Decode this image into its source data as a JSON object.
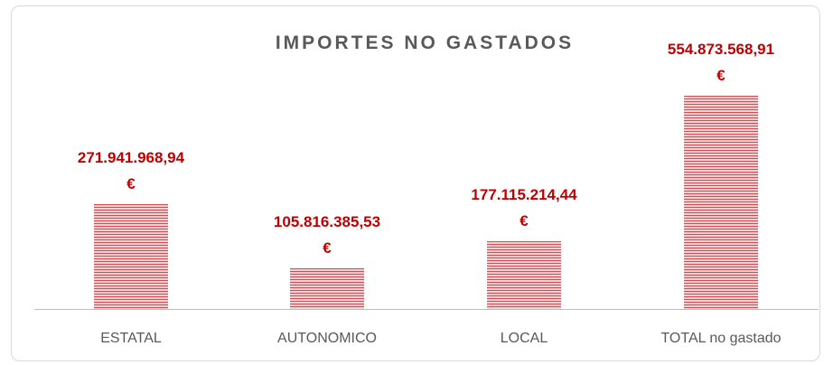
{
  "chart_data": {
    "type": "bar",
    "title": "IMPORTES NO GASTADOS",
    "categories": [
      "ESTATAL",
      "AUTONOMICO",
      "LOCAL",
      "TOTAL no gastado"
    ],
    "values": [
      271941968.94,
      105816385.53,
      177115214.44,
      554873568.91
    ],
    "value_labels": [
      "271.941.968,94 €",
      "105.816.385,53 €",
      "177.115.214,44 €",
      "554.873.568,91 €"
    ],
    "color": "#d24b53"
  }
}
